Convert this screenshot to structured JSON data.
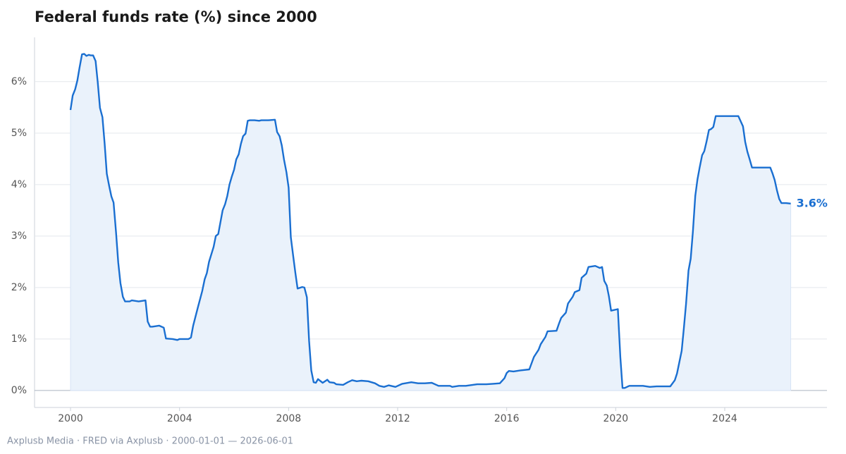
{
  "chart_data": {
    "type": "line",
    "title": "Federal funds rate (%) since 2000",
    "source": "Axplusb Media · FRED via Axplusb · 2000-01-01 — 2026-06-01",
    "end_label": "3.6%",
    "xlim": [
      1998.68,
      2027.75
    ],
    "ylim": [
      -0.33,
      6.86
    ],
    "xticks": [
      2000,
      2004,
      2008,
      2012,
      2016,
      2020,
      2024
    ],
    "yticks": [
      {
        "value": 0,
        "label": "0%"
      },
      {
        "value": 1,
        "label": "1%"
      },
      {
        "value": 2,
        "label": "2%"
      },
      {
        "value": 3,
        "label": "3%"
      },
      {
        "value": 4,
        "label": "4%"
      },
      {
        "value": 5,
        "label": "5%"
      },
      {
        "value": 6,
        "label": "6%"
      }
    ],
    "grid": true,
    "area_fill": "#eaf2fb",
    "x": [
      2000.0,
      2000.08,
      2000.17,
      2000.25,
      2000.33,
      2000.42,
      2000.5,
      2000.58,
      2000.67,
      2000.75,
      2000.83,
      2000.92,
      2001.0,
      2001.08,
      2001.17,
      2001.25,
      2001.33,
      2001.42,
      2001.5,
      2001.58,
      2001.67,
      2001.75,
      2001.83,
      2001.92,
      2002.0,
      2002.17,
      2002.25,
      2002.5,
      2002.75,
      2002.83,
      2002.92,
      2003.0,
      2003.25,
      2003.42,
      2003.5,
      2003.75,
      2003.92,
      2004.0,
      2004.33,
      2004.42,
      2004.5,
      2004.67,
      2004.83,
      2004.92,
      2005.0,
      2005.08,
      2005.25,
      2005.33,
      2005.42,
      2005.58,
      2005.67,
      2005.75,
      2005.83,
      2005.92,
      2006.0,
      2006.08,
      2006.17,
      2006.25,
      2006.33,
      2006.42,
      2006.5,
      2006.58,
      2006.75,
      2006.92,
      2007.0,
      2007.25,
      2007.5,
      2007.58,
      2007.67,
      2007.75,
      2007.83,
      2007.92,
      2008.0,
      2008.08,
      2008.17,
      2008.25,
      2008.33,
      2008.5,
      2008.58,
      2008.67,
      2008.75,
      2008.83,
      2008.92,
      2009.0,
      2009.08,
      2009.25,
      2009.42,
      2009.5,
      2009.67,
      2009.75,
      2010.0,
      2010.17,
      2010.33,
      2010.5,
      2010.67,
      2010.92,
      2011.17,
      2011.33,
      2011.5,
      2011.67,
      2011.92,
      2012.17,
      2012.5,
      2012.75,
      2013.0,
      2013.25,
      2013.5,
      2013.92,
      2014.0,
      2014.25,
      2014.5,
      2014.92,
      2015.25,
      2015.5,
      2015.75,
      2015.92,
      2016.0,
      2016.08,
      2016.25,
      2016.5,
      2016.83,
      2016.92,
      2017.0,
      2017.17,
      2017.25,
      2017.42,
      2017.5,
      2017.83,
      2017.92,
      2018.0,
      2018.17,
      2018.25,
      2018.42,
      2018.5,
      2018.67,
      2018.75,
      2018.92,
      2019.0,
      2019.25,
      2019.42,
      2019.5,
      2019.58,
      2019.67,
      2019.75,
      2019.83,
      2020.08,
      2020.17,
      2020.25,
      2020.33,
      2020.5,
      2020.75,
      2021.0,
      2021.25,
      2021.5,
      2021.67,
      2022.0,
      2022.17,
      2022.25,
      2022.42,
      2022.5,
      2022.58,
      2022.67,
      2022.75,
      2022.83,
      2022.92,
      2023.0,
      2023.08,
      2023.17,
      2023.25,
      2023.33,
      2023.42,
      2023.5,
      2023.58,
      2023.67,
      2024.0,
      2024.5,
      2024.67,
      2024.75,
      2024.83,
      2024.92,
      2025.0,
      2025.5,
      2025.67,
      2025.75,
      2025.83,
      2025.92,
      2026.0,
      2026.08,
      2026.25,
      2026.42
    ],
    "series": [
      {
        "name": "Federal funds rate",
        "color": "#1a6fd1",
        "values": [
          5.45,
          5.73,
          5.85,
          6.02,
          6.27,
          6.53,
          6.54,
          6.5,
          6.52,
          6.51,
          6.51,
          6.4,
          5.98,
          5.49,
          5.31,
          4.8,
          4.21,
          3.97,
          3.77,
          3.65,
          3.07,
          2.49,
          2.09,
          1.82,
          1.73,
          1.73,
          1.75,
          1.73,
          1.75,
          1.34,
          1.24,
          1.24,
          1.26,
          1.22,
          1.01,
          1.0,
          0.98,
          1.0,
          1.0,
          1.03,
          1.26,
          1.61,
          1.93,
          2.16,
          2.28,
          2.5,
          2.79,
          3.0,
          3.04,
          3.5,
          3.62,
          3.78,
          4.0,
          4.16,
          4.29,
          4.49,
          4.59,
          4.79,
          4.94,
          4.99,
          5.24,
          5.25,
          5.25,
          5.24,
          5.25,
          5.25,
          5.26,
          5.02,
          4.94,
          4.76,
          4.49,
          4.24,
          3.94,
          2.98,
          2.61,
          2.28,
          1.98,
          2.01,
          2.0,
          1.81,
          0.97,
          0.39,
          0.16,
          0.15,
          0.22,
          0.15,
          0.21,
          0.16,
          0.15,
          0.12,
          0.11,
          0.16,
          0.2,
          0.18,
          0.19,
          0.18,
          0.14,
          0.09,
          0.07,
          0.1,
          0.07,
          0.13,
          0.16,
          0.14,
          0.14,
          0.15,
          0.09,
          0.09,
          0.07,
          0.09,
          0.09,
          0.12,
          0.12,
          0.13,
          0.14,
          0.24,
          0.34,
          0.38,
          0.37,
          0.39,
          0.41,
          0.54,
          0.65,
          0.79,
          0.9,
          1.04,
          1.15,
          1.16,
          1.3,
          1.41,
          1.51,
          1.69,
          1.82,
          1.91,
          1.95,
          2.19,
          2.27,
          2.4,
          2.42,
          2.38,
          2.4,
          2.13,
          2.04,
          1.83,
          1.55,
          1.58,
          0.65,
          0.05,
          0.05,
          0.09,
          0.09,
          0.09,
          0.07,
          0.08,
          0.08,
          0.08,
          0.2,
          0.33,
          0.77,
          1.21,
          1.68,
          2.33,
          2.56,
          3.08,
          3.78,
          4.1,
          4.33,
          4.57,
          4.65,
          4.83,
          5.06,
          5.08,
          5.12,
          5.33,
          5.33,
          5.33,
          5.13,
          4.83,
          4.64,
          4.48,
          4.33,
          4.33,
          4.33,
          4.22,
          4.09,
          3.88,
          3.72,
          3.64,
          3.64,
          3.63
        ]
      }
    ]
  }
}
